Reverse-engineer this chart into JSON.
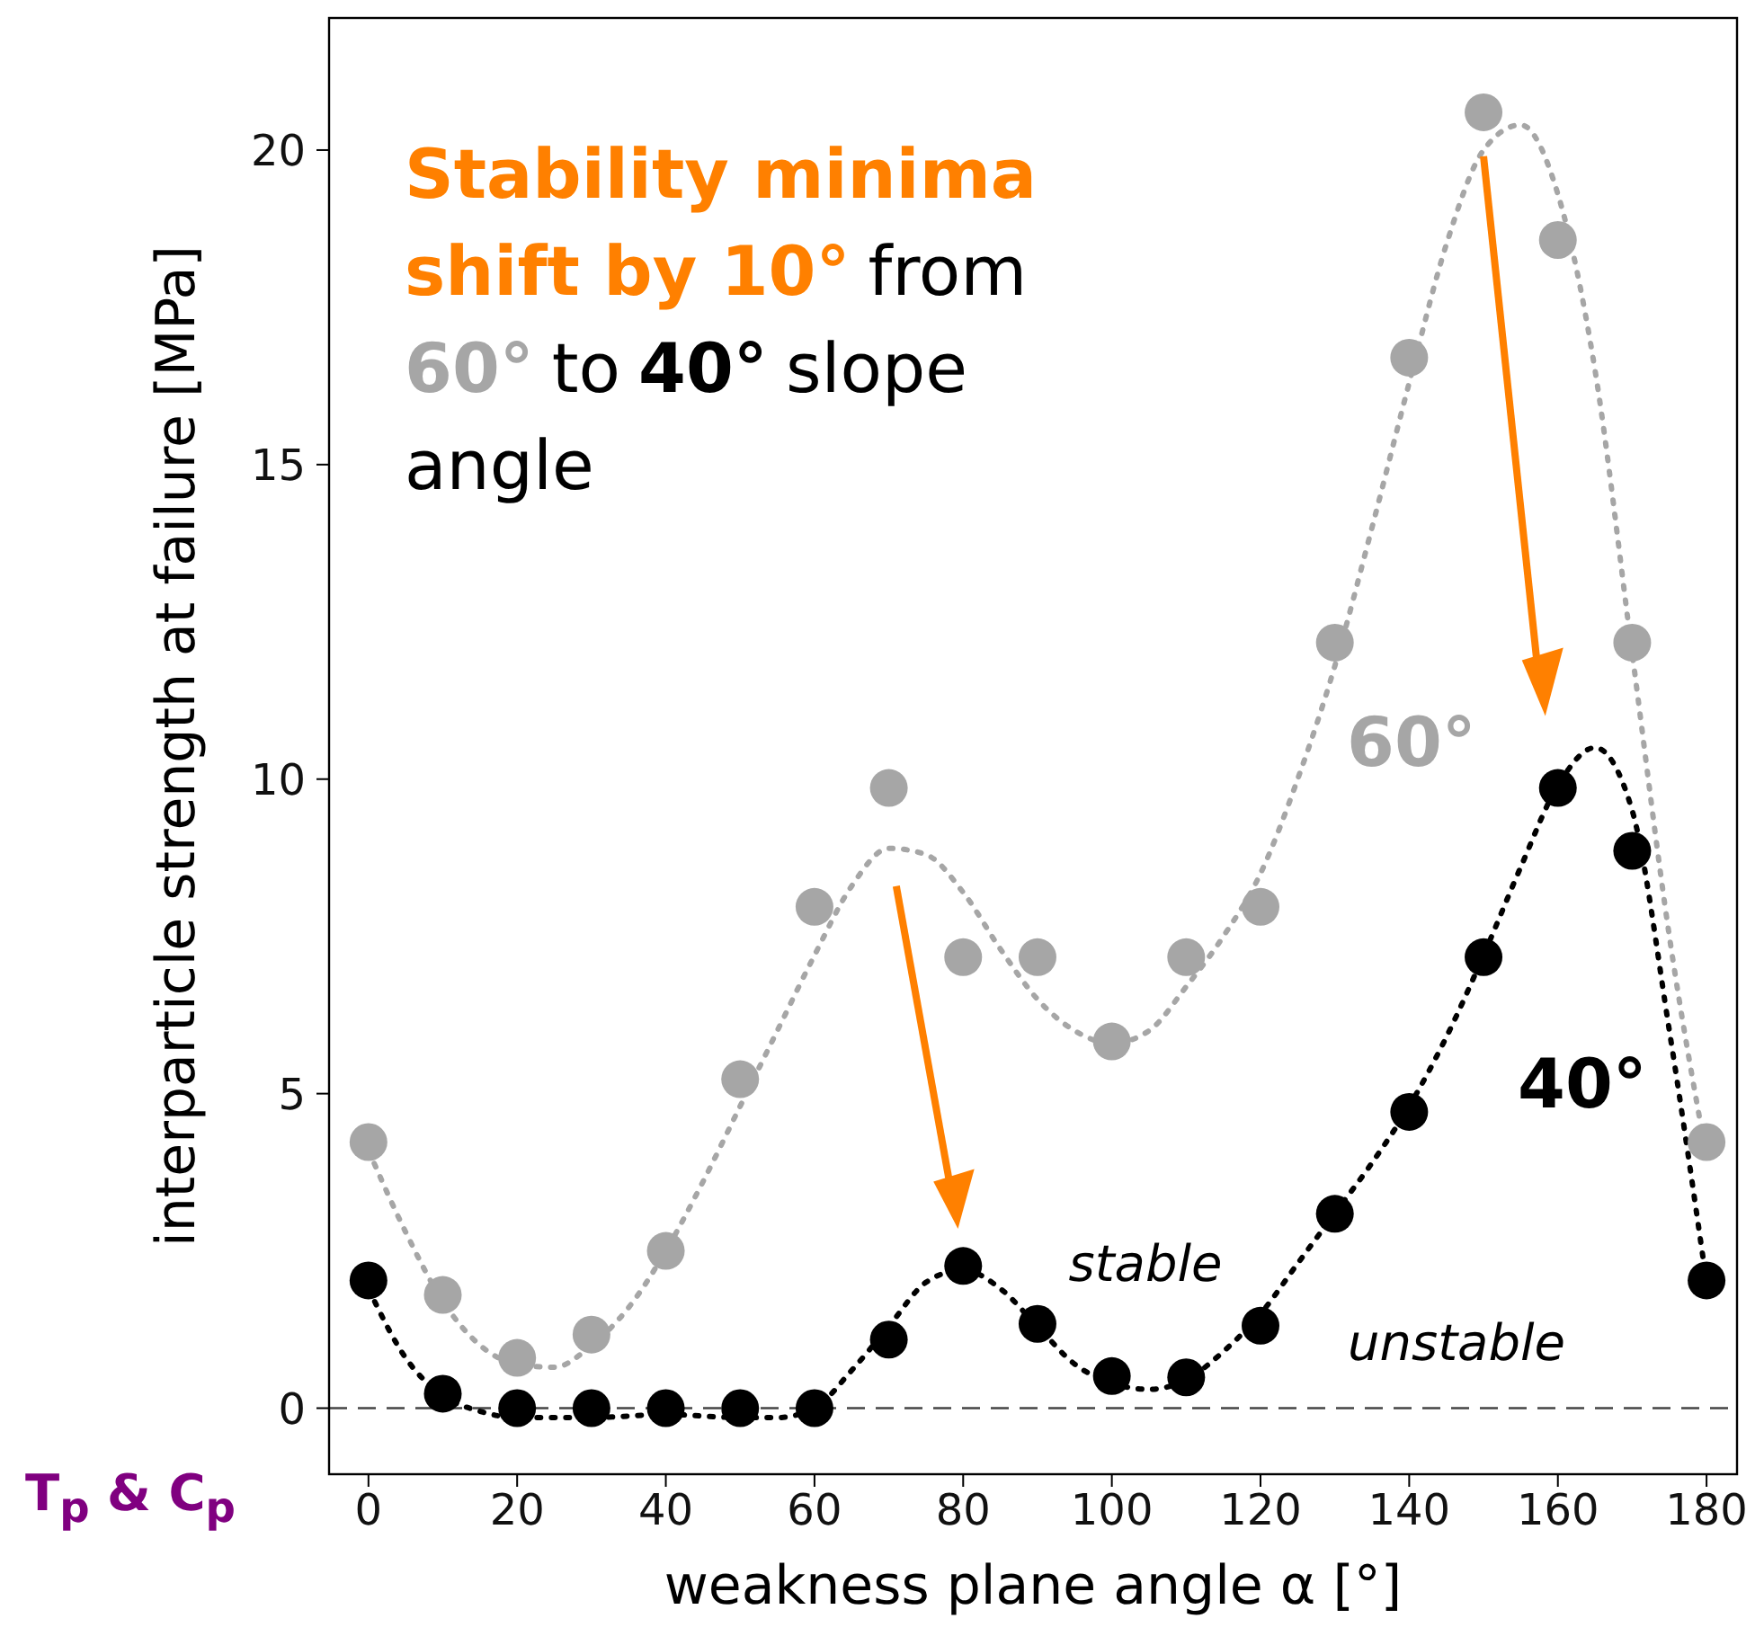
{
  "chart_data": {
    "type": "scatter",
    "xlabel": "weakness plane angle α [°]",
    "ylabel": "interparticle strength at failure [MPa]",
    "x": [
      0,
      10,
      20,
      30,
      40,
      50,
      60,
      70,
      80,
      90,
      100,
      110,
      120,
      130,
      140,
      150,
      160,
      170,
      180
    ],
    "series": [
      {
        "type": "line",
        "color": "#a6a6a6",
        "line_style": "dotted",
        "marker": "none",
        "x": [
          0,
          5,
          10,
          15,
          20,
          25,
          30,
          35,
          40,
          45,
          50,
          55,
          60,
          65,
          70,
          75,
          80,
          85,
          90,
          95,
          100,
          105,
          110,
          115,
          120,
          125,
          130,
          135,
          140,
          145,
          150,
          155,
          160,
          165,
          170,
          175,
          180
        ],
        "values": [
          4.1,
          2.8,
          1.7,
          1.0,
          0.7,
          0.65,
          1.0,
          1.6,
          2.5,
          3.6,
          4.8,
          6.0,
          7.2,
          8.3,
          8.9,
          8.8,
          8.2,
          7.3,
          6.5,
          6.0,
          5.8,
          6.0,
          6.7,
          7.5,
          8.5,
          10.0,
          11.8,
          14.0,
          16.3,
          18.5,
          20.0,
          20.4,
          19.3,
          16.5,
          12.0,
          7.5,
          4.0
        ]
      },
      {
        "type": "line",
        "color": "#000000",
        "line_style": "dotted",
        "marker": "none",
        "x": [
          0,
          5,
          10,
          15,
          20,
          30,
          40,
          50,
          55,
          60,
          65,
          70,
          75,
          80,
          85,
          90,
          95,
          100,
          105,
          110,
          115,
          120,
          125,
          130,
          135,
          140,
          145,
          150,
          155,
          160,
          165,
          170,
          175,
          180
        ],
        "values": [
          1.9,
          0.8,
          0.2,
          -0.05,
          -0.15,
          -0.15,
          -0.1,
          -0.15,
          -0.15,
          0,
          0.6,
          1.3,
          2.0,
          2.2,
          1.9,
          1.3,
          0.7,
          0.4,
          0.3,
          0.45,
          0.9,
          1.5,
          2.3,
          3.1,
          3.9,
          4.8,
          5.9,
          7.2,
          8.6,
          9.9,
          10.5,
          9.5,
          6.0,
          2.0
        ]
      },
      {
        "color": "#a6a6a6",
        "marker": "circle",
        "values": [
          4.23,
          1.8,
          0.8,
          1.17,
          2.5,
          5.23,
          7.97,
          9.86,
          7.17,
          7.17,
          5.83,
          7.17,
          7.97,
          12.17,
          16.7,
          20.6,
          18.57,
          12.17,
          4.23
        ]
      },
      {
        "color": "#000000",
        "marker": "circle",
        "values": [
          2.03,
          0.23,
          0,
          0,
          0,
          0,
          0,
          1.09,
          2.26,
          1.34,
          0.51,
          0.49,
          1.31,
          3.09,
          4.71,
          7.17,
          9.86,
          8.86,
          2.03
        ]
      }
    ],
    "xlim": [
      -5.3,
      184.1
    ],
    "ylim": [
      -1.05,
      22.1
    ],
    "xticks": [
      0,
      20,
      40,
      60,
      80,
      100,
      120,
      140,
      160,
      180
    ],
    "yticks": [
      0,
      5,
      10,
      15,
      20
    ],
    "ref_lines": [
      {
        "axis": "y",
        "value": 0,
        "color": "#444444",
        "line_style": "dashed"
      }
    ],
    "annotations": [
      "Stability minima",
      "shift by 10°",
      "from",
      "60°",
      "to",
      "40°",
      "slope",
      "angle",
      "T$_{p}$ & C$_{p}$",
      {
        "text": "60°",
        "x": 160,
        "y": 9.86
      },
      "40°",
      "stable",
      "unstable"
    ],
    "grid": false,
    "legend": false
  }
}
